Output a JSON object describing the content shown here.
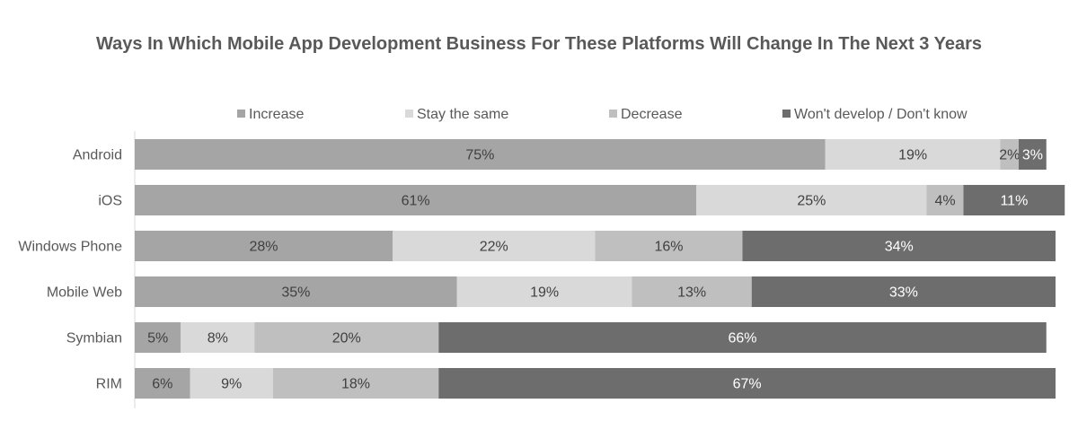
{
  "chart_data": {
    "type": "bar",
    "orientation": "horizontal",
    "stacked": true,
    "title": "Ways In Which Mobile App Development Business For These Platforms Will Change In The Next 3 Years",
    "categories": [
      "Android",
      "iOS",
      "Windows Phone",
      "Mobile Web",
      "Symbian",
      "RIM"
    ],
    "series": [
      {
        "name": "Increase",
        "color": "#a5a5a5",
        "values": [
          75,
          61,
          28,
          35,
          5,
          6
        ],
        "labels": [
          "75%",
          "61%",
          "28%",
          "35%",
          "5%",
          "6%"
        ],
        "label_color": "#404040"
      },
      {
        "name": "Stay the same",
        "color": "#d9d9d9",
        "values": [
          19,
          25,
          22,
          19,
          8,
          9
        ],
        "labels": [
          "19%",
          "25%",
          "22%",
          "19%",
          "8%",
          "9%"
        ],
        "label_color": "#404040"
      },
      {
        "name": "Decrease",
        "color": "#bfbfbf",
        "values": [
          2,
          4,
          16,
          13,
          20,
          18
        ],
        "labels": [
          "2%",
          "4%",
          "16%",
          "13%",
          "20%",
          "18%"
        ],
        "label_color": "#404040"
      },
      {
        "name": "Won't develop / Don't know",
        "color": "#6d6d6d",
        "values": [
          3,
          11,
          34,
          33,
          66,
          67
        ],
        "labels": [
          "3%",
          "11%",
          "34%",
          "33%",
          "66%",
          "67%"
        ],
        "label_color": "#ffffff"
      }
    ],
    "xlim": [
      0,
      100
    ],
    "legend": "top",
    "grid": false
  }
}
